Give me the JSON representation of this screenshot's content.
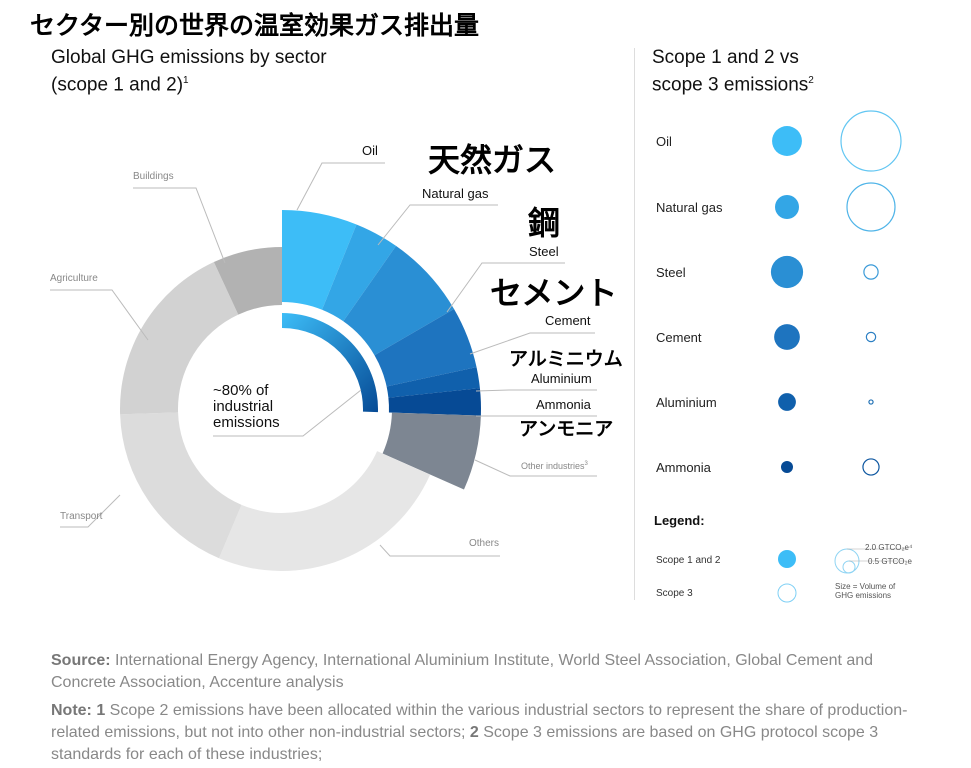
{
  "title": "セクター別の世界の温室効果ガス排出量",
  "left_heading": {
    "line1": "Global GHG emissions by sector",
    "line2": "(scope 1 and 2)",
    "sup": "1"
  },
  "right_heading": {
    "line1": "Scope 1 and 2 vs",
    "line2": "scope 3 emissions",
    "sup": "2"
  },
  "center_text": {
    "line1": "~80% of",
    "line2": "industrial",
    "line3": "emissions"
  },
  "jp_labels": {
    "natural_gas": "天然ガス",
    "steel": "鋼",
    "cement": "セメント",
    "aluminium": "アルミニウム",
    "ammonia": "アンモニア"
  },
  "chart_data": [
    {
      "type": "pie",
      "title": "Global GHG emissions by sector (scope 1 and 2)",
      "unit": "percent of total (estimated)",
      "segments": [
        {
          "label": "Oil",
          "value": 6.1,
          "color": "#3dbdf7",
          "industrial": true
        },
        {
          "label": "Natural gas",
          "value": 3.6,
          "color": "#33a6e6",
          "industrial": true
        },
        {
          "label": "Steel",
          "value": 6.9,
          "color": "#2a8fd4",
          "industrial": true
        },
        {
          "label": "Cement",
          "value": 5.0,
          "color": "#1e74bf",
          "industrial": true
        },
        {
          "label": "Aluminium",
          "value": 1.7,
          "color": "#1060ac",
          "industrial": true
        },
        {
          "label": "Ammonia",
          "value": 2.2,
          "color": "#064a95",
          "industrial": true
        },
        {
          "label": "Other industries",
          "sup": "3",
          "value": 6.1,
          "color": "#7d8692",
          "industrial": true
        },
        {
          "label": "Others",
          "value": 24.7,
          "color": "#e6e6e6",
          "industrial": false
        },
        {
          "label": "Transport",
          "value": 18.1,
          "color": "#dcdcdc",
          "industrial": false
        },
        {
          "label": "Agriculture",
          "value": 18.6,
          "color": "#d2d2d2",
          "industrial": false
        },
        {
          "label": "Buildings",
          "value": 6.9,
          "color": "#b2b2b2",
          "industrial": false
        }
      ]
    },
    {
      "type": "scatter",
      "title": "Scope 1 and 2 vs scope 3 emissions",
      "unit": "GtCO2e (estimated from bubble size)",
      "categories": [
        "Oil",
        "Natural gas",
        "Steel",
        "Cement",
        "Aluminium",
        "Ammonia"
      ],
      "series": [
        {
          "name": "Scope 1 and 2",
          "values": [
            3.1,
            2.0,
            3.6,
            2.3,
            1.1,
            0.5
          ],
          "colors": [
            "#3dbdf7",
            "#33a6e6",
            "#2a8fd4",
            "#1e74bf",
            "#1060ac",
            "#064a95"
          ]
        },
        {
          "name": "Scope 3",
          "values": [
            12.5,
            8.0,
            0.7,
            0.3,
            0.06,
            0.9
          ],
          "colors": [
            "#62c6f2",
            "#4fb4e8",
            "#3a9ad8",
            "#2d80c4",
            "#2070b4",
            "#0c56a0"
          ]
        }
      ]
    }
  ],
  "legend": {
    "title": "Legend:",
    "scope12": "Scope 1 and 2",
    "scope3": "Scope 3",
    "big_value": "2.0 GTCO₂e⁴",
    "small_value": "0.5 GTCO₂e",
    "size_note_1": "Size = Volume of",
    "size_note_2": "GHG emissions",
    "color": "#3dbdf7"
  },
  "footer": {
    "source_label": "Source:",
    "source_text": " International Energy Agency, International Aluminium Institute, World Steel Association, Global Cement and Concrete Association, Accenture analysis",
    "note_label": "Note:",
    "note_1_num": " 1",
    "note_1_text": " Scope 2 emissions have been allocated within the various industrial sectors to represent the share of production-related emissions, but not into other non-industrial sectors;",
    "note_2_num": " 2",
    "note_2_text": " Scope 3 emissions are based on GHG protocol scope 3 standards for each of these industries;"
  }
}
